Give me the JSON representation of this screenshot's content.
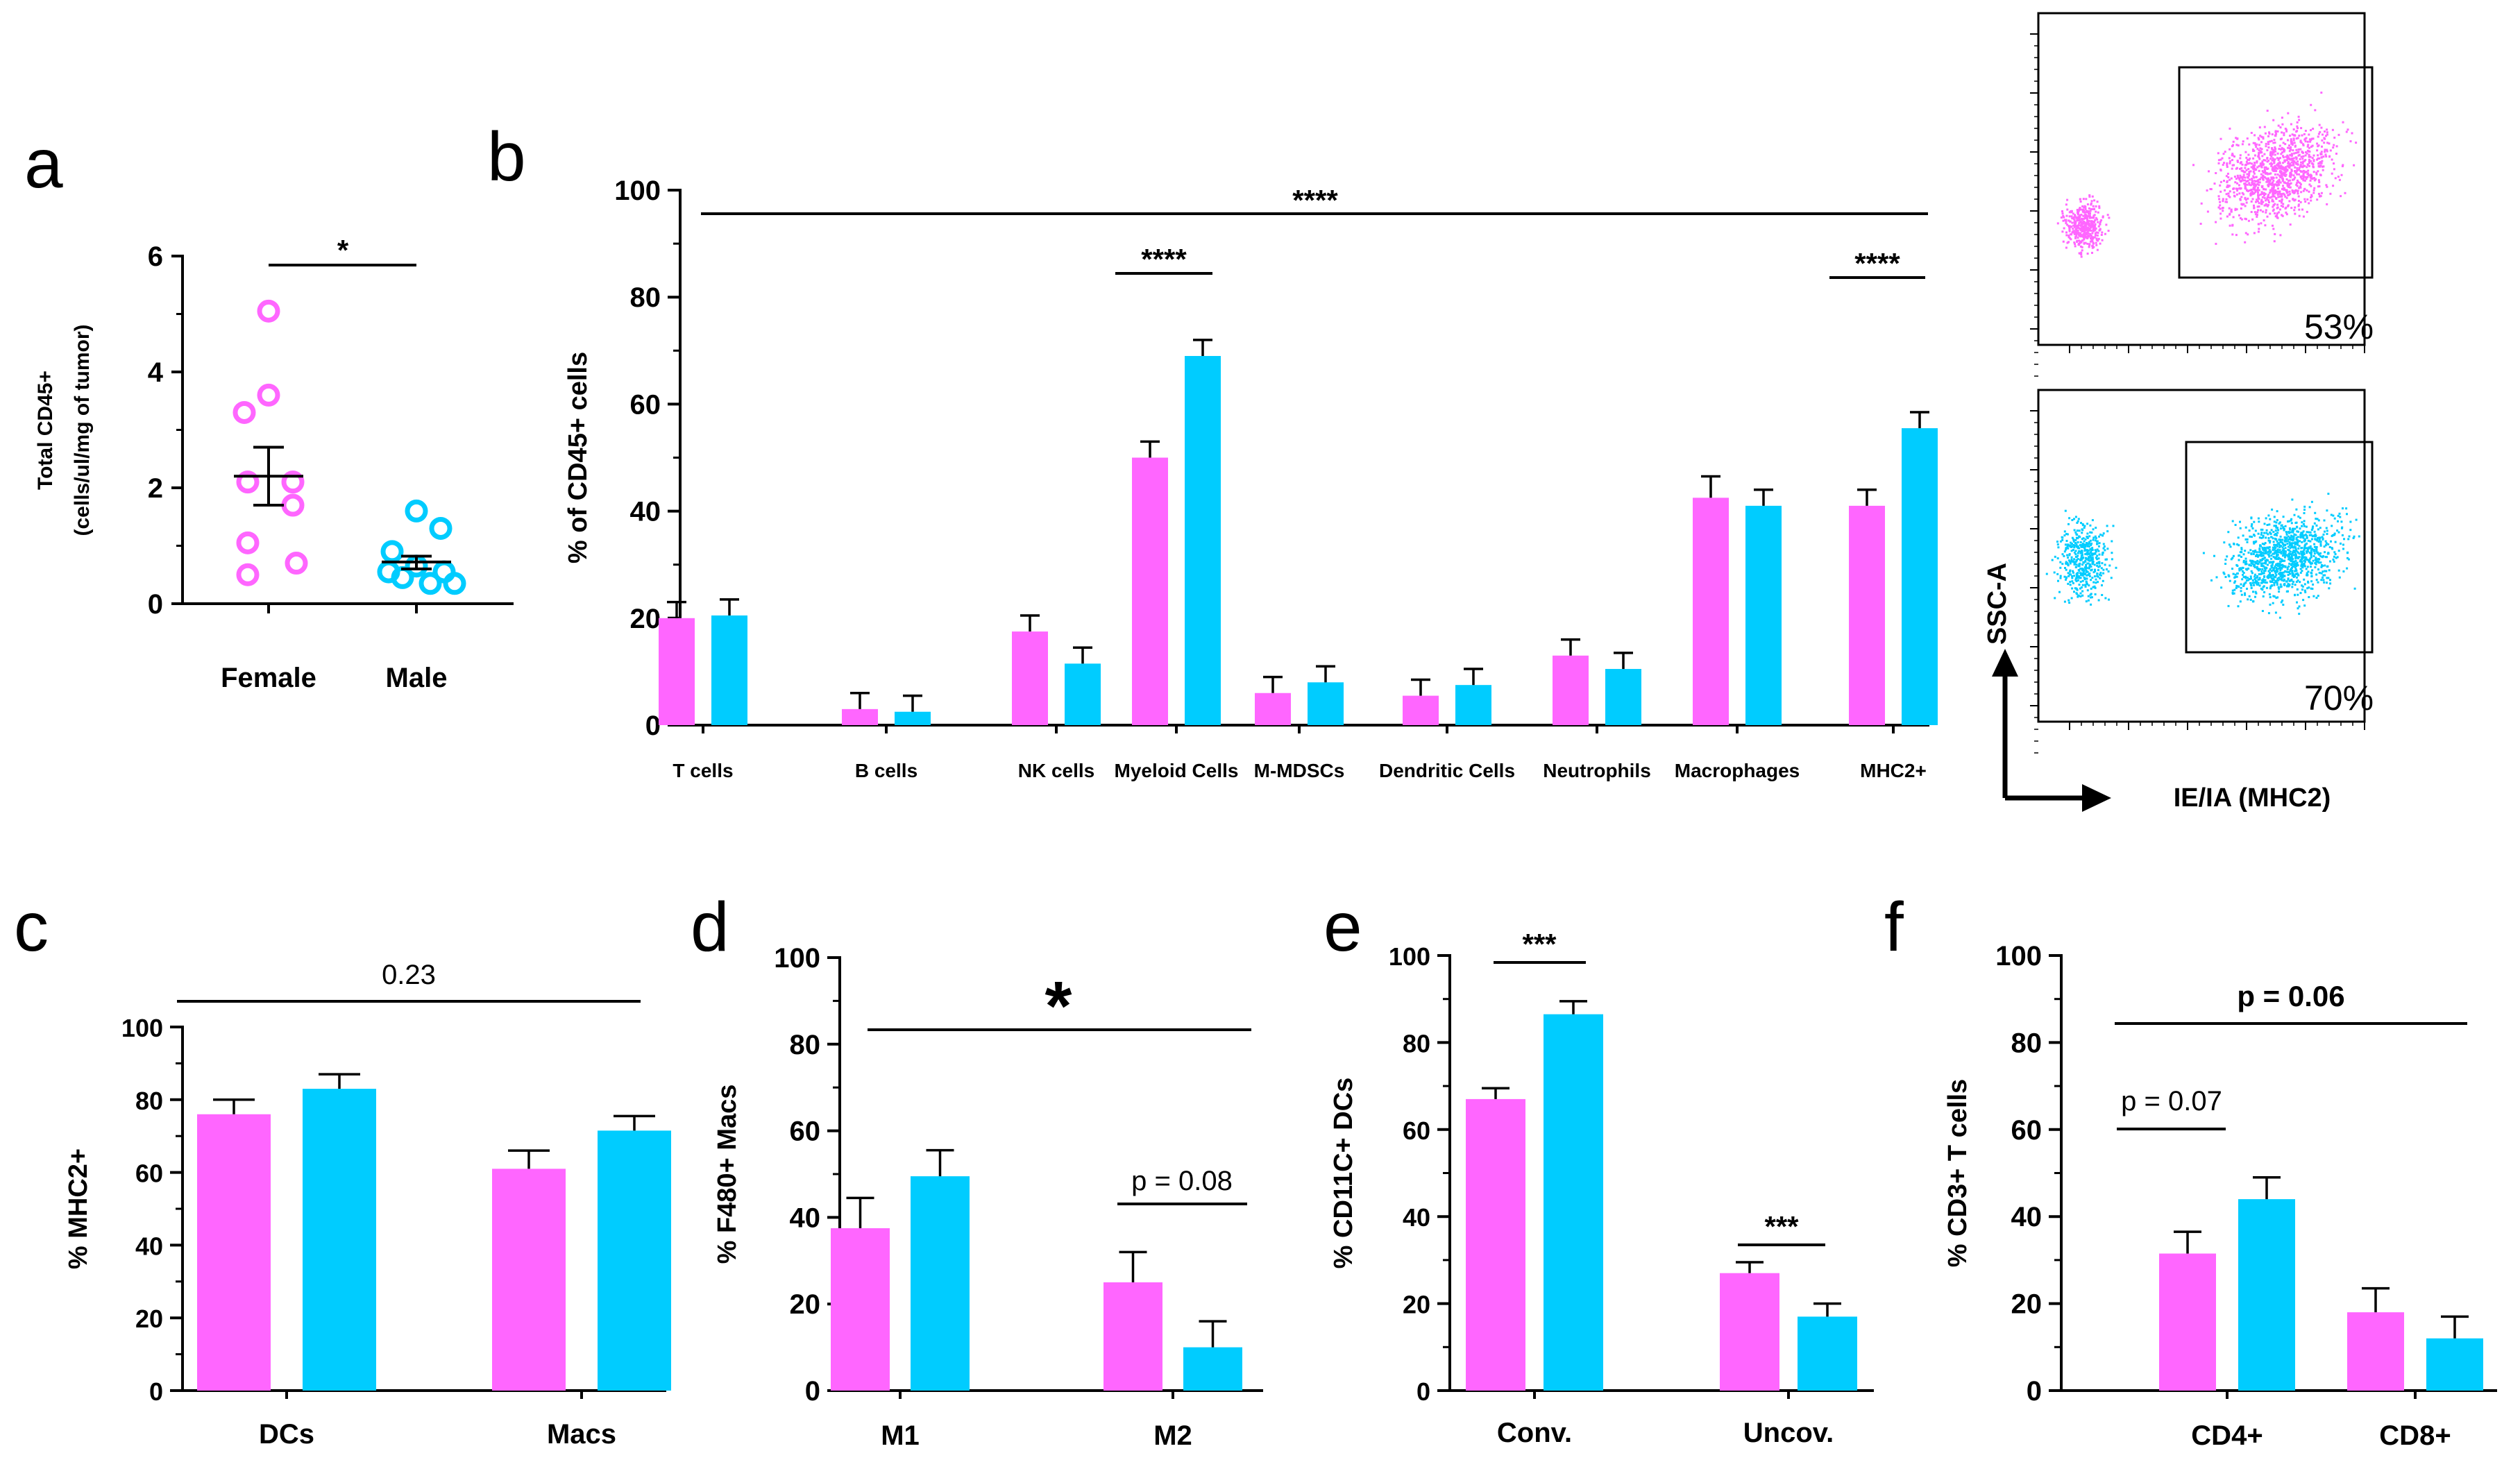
{
  "colors": {
    "female": "#ff66ff",
    "male": "#00ccff",
    "axis": "#000000"
  },
  "chart_data": [
    {
      "id": "a",
      "panel_label": "a",
      "type": "scatter",
      "ylabel_line1": "Total CD45+",
      "ylabel_line2": "(cells/ul/mg of tumor)",
      "ylim": [
        0,
        6
      ],
      "yticks": [
        "0",
        "2",
        "4",
        "6"
      ],
      "categories": [
        "Female",
        "Male"
      ],
      "series": [
        {
          "name": "Female",
          "values": [
            5.05,
            3.6,
            3.3,
            2.1,
            2.1,
            1.7,
            1.05,
            0.7,
            0.5
          ],
          "mean": 2.2,
          "sem_low": 1.7,
          "sem_high": 2.7
        },
        {
          "name": "Male",
          "values": [
            1.6,
            1.3,
            0.9,
            0.65,
            0.55,
            0.55,
            0.45,
            0.35,
            0.35
          ],
          "mean": 0.72,
          "sem_low": 0.6,
          "sem_high": 0.82
        }
      ],
      "sig": "*"
    },
    {
      "id": "b",
      "panel_label": "b",
      "type": "bar",
      "ylabel": "% of CD45+ cells",
      "ylim": [
        0,
        100
      ],
      "yticks": [
        "0",
        "20",
        "40",
        "60",
        "80",
        "100"
      ],
      "categories": [
        "T cells",
        "B cells",
        "NK cells",
        "Myeloid Cells",
        "M-MDSCs",
        "Dendritic Cells",
        "Neutrophils",
        "Macrophages",
        "MHC2+"
      ],
      "series": [
        {
          "name": "Female",
          "values": [
            20,
            3,
            17.5,
            50,
            6,
            5.5,
            13,
            42.5,
            41
          ],
          "errors": [
            3,
            3,
            3,
            3,
            3,
            3,
            3,
            4,
            3
          ]
        },
        {
          "name": "Male",
          "values": [
            20.5,
            2.5,
            11.5,
            69,
            8,
            7.5,
            10.5,
            41,
            55.5
          ],
          "errors": [
            3,
            3,
            3,
            3,
            3,
            3,
            3,
            3,
            3
          ]
        }
      ],
      "sig_overall": "****",
      "sig_myeloid": "****",
      "sig_mhc2": "****"
    },
    {
      "id": "flow",
      "type": "scatter",
      "gates": [
        "53%",
        "70%"
      ],
      "ylabel": "SSC-A",
      "xlabel": "IE/IA (MHC2)"
    },
    {
      "id": "c",
      "panel_label": "c",
      "type": "bar",
      "ylabel": "% MHC2+",
      "ylim": [
        0,
        100
      ],
      "yticks": [
        "0",
        "20",
        "40",
        "60",
        "80",
        "100"
      ],
      "categories": [
        "DCs",
        "Macs"
      ],
      "series": [
        {
          "name": "Female",
          "values": [
            76,
            61
          ],
          "errors": [
            4,
            5
          ]
        },
        {
          "name": "Male",
          "values": [
            83,
            71.5
          ],
          "errors": [
            4,
            4
          ]
        }
      ],
      "sig": "0.23"
    },
    {
      "id": "d",
      "panel_label": "d",
      "type": "bar",
      "ylabel": "% F480+ Macs",
      "ylim": [
        0,
        100
      ],
      "yticks": [
        "0",
        "20",
        "40",
        "60",
        "80",
        "100"
      ],
      "categories": [
        "M1",
        "M2"
      ],
      "series": [
        {
          "name": "Female",
          "values": [
            37.5,
            25
          ],
          "errors": [
            7,
            7
          ]
        },
        {
          "name": "Male",
          "values": [
            49.5,
            10
          ],
          "errors": [
            6,
            6
          ]
        }
      ],
      "sig_overall": "*",
      "sig_m2": "p = 0.08"
    },
    {
      "id": "e",
      "panel_label": "e",
      "type": "bar",
      "ylabel": "% CD11C+ DCs",
      "ylim": [
        0,
        100
      ],
      "yticks": [
        "0",
        "20",
        "40",
        "60",
        "80",
        "100"
      ],
      "categories": [
        "Conv.",
        "Uncov."
      ],
      "series": [
        {
          "name": "Female",
          "values": [
            67,
            27
          ],
          "errors": [
            2.5,
            2.5
          ]
        },
        {
          "name": "Male",
          "values": [
            86.5,
            17
          ],
          "errors": [
            3,
            3
          ]
        }
      ],
      "sig_conv": "***",
      "sig_uncov": "***"
    },
    {
      "id": "f",
      "panel_label": "f",
      "type": "bar",
      "ylabel": "% CD3+ T cells",
      "ylim": [
        0,
        100
      ],
      "yticks": [
        "0",
        "20",
        "40",
        "60",
        "80",
        "100"
      ],
      "categories": [
        "CD4+",
        "CD8+"
      ],
      "series": [
        {
          "name": "Female",
          "values": [
            31.5,
            18
          ],
          "errors": [
            5,
            5.5
          ]
        },
        {
          "name": "Male",
          "values": [
            44,
            12
          ],
          "errors": [
            5,
            5
          ]
        }
      ],
      "sig_overall": "p = 0.06",
      "sig_cd4": "p = 0.07"
    }
  ]
}
